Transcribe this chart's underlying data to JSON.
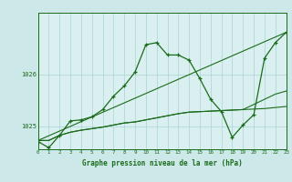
{
  "xlabel": "Graphe pression niveau de la mer (hPa)",
  "bg_color": "#cce8e8",
  "plot_bg": "#daf0f0",
  "grid_color": "#aad4d4",
  "line_color": "#1a6b1a",
  "xmin": 0,
  "xmax": 23,
  "ymin": 1024.55,
  "ymax": 1027.2,
  "yticks": [
    1025,
    1026
  ],
  "series1": [
    1024.7,
    1024.58,
    1024.82,
    1025.1,
    1025.12,
    1025.18,
    1025.32,
    1025.58,
    1025.78,
    1026.05,
    1026.58,
    1026.62,
    1026.38,
    1026.38,
    1026.28,
    1025.92,
    1025.52,
    1025.28,
    1024.78,
    1025.02,
    1025.22,
    1026.32,
    1026.62,
    1026.82
  ],
  "series2_x": [
    0,
    23
  ],
  "series2_y": [
    1024.72,
    1026.82
  ],
  "series3": [
    1024.72,
    1024.72,
    1024.82,
    1024.88,
    1024.92,
    1024.95,
    1024.98,
    1025.02,
    1025.06,
    1025.08,
    1025.12,
    1025.16,
    1025.2,
    1025.24,
    1025.27,
    1025.28,
    1025.29,
    1025.3,
    1025.31,
    1025.32,
    1025.33,
    1025.34,
    1025.36,
    1025.38
  ],
  "series4": [
    1024.72,
    1024.72,
    1024.82,
    1024.88,
    1024.92,
    1024.95,
    1024.98,
    1025.02,
    1025.06,
    1025.08,
    1025.12,
    1025.16,
    1025.2,
    1025.24,
    1025.27,
    1025.28,
    1025.29,
    1025.3,
    1025.31,
    1025.32,
    1025.42,
    1025.52,
    1025.62,
    1025.68
  ]
}
